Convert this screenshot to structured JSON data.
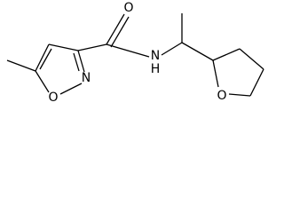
{
  "nodes": [
    {
      "label": "O"
    },
    {
      "label": "N"
    },
    {
      "label": "O"
    },
    {
      "label": "N"
    },
    {
      "label": "H"
    },
    {
      "label": "O"
    }
  ]
}
